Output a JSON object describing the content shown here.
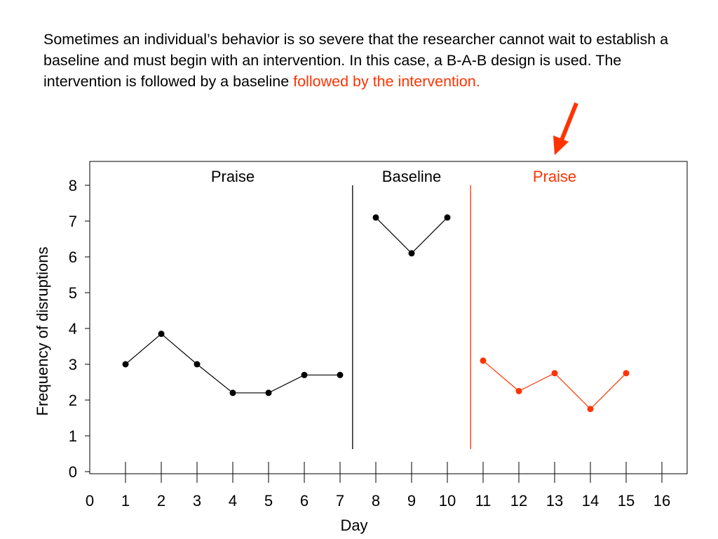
{
  "intro": {
    "text_plain": "Sometimes an individual’s behavior is so severe that the researcher cannot wait to establish a baseline and must begin with an intervention. In this case, a B-A-B design is used. The intervention is followed by a baseline ",
    "text_highlight": "followed by the intervention."
  },
  "colors": {
    "accent": "#ff3300",
    "series": "#000000"
  },
  "chart_data": {
    "type": "line",
    "title": "",
    "xlabel": "Day",
    "ylabel": "Frequency of disruptions",
    "xlim": [
      0,
      16
    ],
    "ylim": [
      0,
      8
    ],
    "x_ticks": [
      0,
      1,
      2,
      3,
      4,
      5,
      6,
      7,
      8,
      9,
      10,
      11,
      12,
      13,
      14,
      15,
      16
    ],
    "y_ticks": [
      0,
      1,
      2,
      3,
      4,
      5,
      6,
      7,
      8
    ],
    "grid": false,
    "phases": [
      {
        "label": "Praise",
        "color": "#000000",
        "x": [
          1,
          2,
          3,
          4,
          5,
          6,
          7
        ],
        "values": [
          3.0,
          3.85,
          3.0,
          2.2,
          2.2,
          2.7,
          2.7
        ]
      },
      {
        "label": "Baseline",
        "color": "#000000",
        "x": [
          8,
          9,
          10
        ],
        "values": [
          7.1,
          6.1,
          7.1
        ]
      },
      {
        "label": "Praise",
        "color": "#ff3300",
        "x": [
          11,
          12,
          13,
          14,
          15
        ],
        "values": [
          3.1,
          2.25,
          2.75,
          1.75,
          2.75
        ]
      }
    ],
    "phase_dividers": [
      {
        "x": 7.35,
        "color": "#000000"
      },
      {
        "x": 10.65,
        "color": "#ff3300"
      }
    ]
  }
}
